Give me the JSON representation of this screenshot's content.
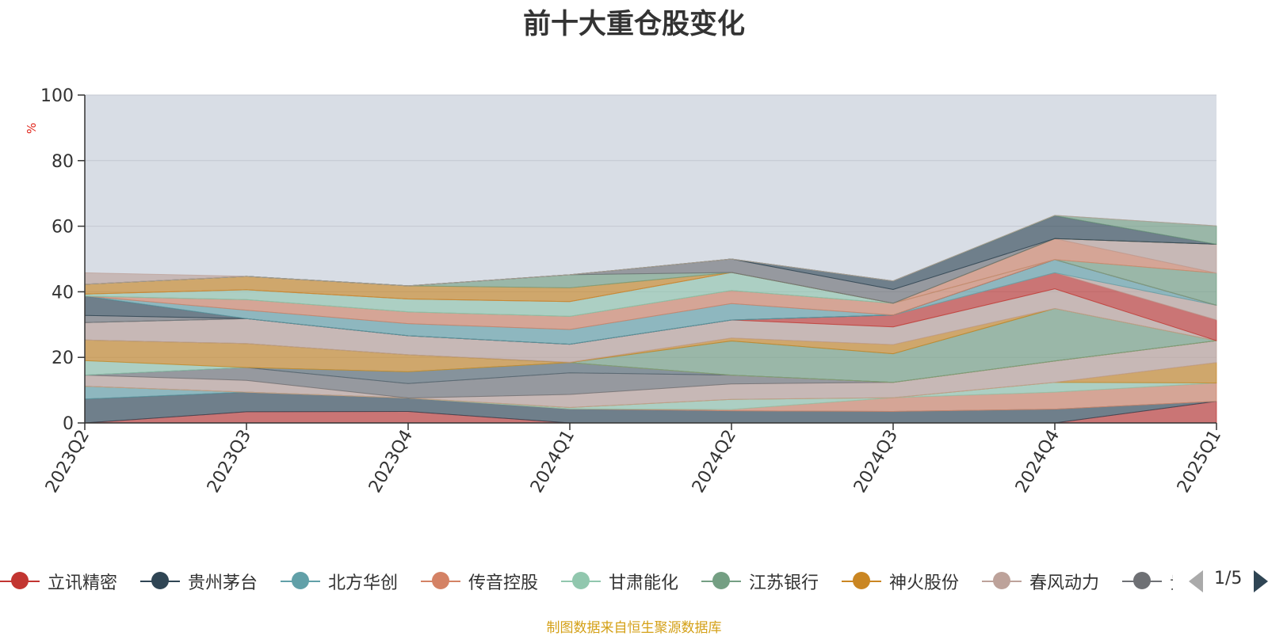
{
  "chart_data": {
    "type": "area",
    "title": "前十大重仓股变化",
    "ylabel": "%",
    "ylim": [
      0,
      100
    ],
    "yticks": [
      0,
      20,
      40,
      60,
      80,
      100
    ],
    "categories": [
      "2023Q2",
      "2023Q3",
      "2023Q4",
      "2024Q1",
      "2024Q2",
      "2024Q3",
      "2024Q4",
      "2025Q1"
    ],
    "stacked": true,
    "grid": true,
    "legend_position": "bottom",
    "series": [
      {
        "name": "立讯精密",
        "color": "#c23531",
        "values": [
          0,
          3.4,
          3.5,
          0,
          0,
          0,
          0,
          6.6
        ]
      },
      {
        "name": "贵州茅台",
        "color": "#2f4554",
        "values": [
          7.3,
          6.0,
          4.1,
          4.3,
          3.7,
          3.5,
          4.2,
          0
        ]
      },
      {
        "name": "北方华创",
        "color": "#61a0a8",
        "values": [
          3.9,
          0,
          0,
          0,
          0,
          0,
          0,
          0
        ]
      },
      {
        "name": "传音控股",
        "color": "#d48265",
        "values": [
          0,
          0,
          0,
          0,
          0.4,
          4.2,
          5.2,
          5.6
        ]
      },
      {
        "name": "甘肃能化",
        "color": "#91c7ae",
        "values": [
          0,
          0,
          0,
          0.4,
          3.1,
          0,
          3.0,
          0
        ]
      },
      {
        "name": "江苏银行",
        "color": "#749f83",
        "values": [
          0,
          0,
          0,
          0,
          0,
          0,
          0,
          0
        ]
      },
      {
        "name": "神火股份",
        "color": "#ca8622",
        "values": [
          0,
          0,
          0,
          0,
          0,
          0,
          0,
          6.2
        ]
      },
      {
        "name": "春风动力",
        "color": "#bda29a",
        "values": [
          3.4,
          3.6,
          0,
          4.0,
          4.7,
          4.7,
          6.5,
          6.7
        ]
      },
      {
        "name": "",
        "color": "#6e7074",
        "values": [
          0,
          3.9,
          4.4,
          6.6,
          2.7,
          0,
          0,
          0
        ]
      },
      {
        "name": "",
        "color": "#546570",
        "values": [
          0,
          0,
          3.6,
          3.1,
          0,
          0,
          0,
          0
        ]
      },
      {
        "name": "",
        "color": "#91c7ae",
        "values": [
          4.4,
          0,
          0,
          0,
          0,
          0,
          0,
          0
        ]
      },
      {
        "name": "",
        "color": "#ca8622",
        "values": [
          6.3,
          7.3,
          5.2,
          0,
          0,
          0,
          0,
          0
        ]
      },
      {
        "name": "",
        "color": "#749f83",
        "values": [
          0,
          0,
          0,
          0,
          10.4,
          8.7,
          16.0,
          0
        ]
      },
      {
        "name": "",
        "color": "#ca8622",
        "values": [
          0,
          0,
          0,
          0.1,
          0.9,
          2.8,
          0,
          0
        ]
      },
      {
        "name": "",
        "color": "#bda29a",
        "values": [
          5.3,
          7.6,
          5.8,
          5.5,
          5.5,
          5.4,
          6.0,
          0
        ]
      },
      {
        "name": "",
        "color": "#c23531",
        "values": [
          0,
          0,
          0,
          0,
          0,
          3.6,
          4.9,
          6.3
        ]
      },
      {
        "name": "",
        "color": "#bda29a",
        "values": [
          0,
          0,
          0,
          0,
          0,
          0,
          0,
          4.5
        ]
      },
      {
        "name": "",
        "color": "#61a0a8",
        "values": [
          0,
          0,
          0,
          0,
          0,
          0,
          4.0,
          0
        ]
      },
      {
        "name": "",
        "color": "#6e7074",
        "values": [
          2.2,
          0,
          0,
          0,
          0,
          0,
          0,
          0
        ]
      },
      {
        "name": "",
        "color": "#2f4554",
        "values": [
          5.9,
          0,
          0,
          0,
          0,
          0,
          0,
          0
        ]
      },
      {
        "name": "",
        "color": "#61a0a8",
        "values": [
          0,
          2.6,
          3.7,
          4.5,
          5.0,
          0,
          0,
          0
        ]
      },
      {
        "name": "",
        "color": "#d48265",
        "values": [
          0,
          3.2,
          3.6,
          4.0,
          4.0,
          3.6,
          0,
          0
        ]
      },
      {
        "name": "",
        "color": "#749f83",
        "values": [
          0,
          0,
          0,
          0,
          0,
          0,
          0,
          9.8
        ]
      },
      {
        "name": "",
        "color": "#91c7ae",
        "values": [
          0.6,
          3.0,
          3.9,
          4.5,
          5.5,
          0,
          0,
          0
        ]
      },
      {
        "name": "",
        "color": "#d48265",
        "values": [
          0,
          0,
          0,
          0,
          0,
          0,
          6.4,
          0
        ]
      },
      {
        "name": "",
        "color": "#bda29a",
        "values": [
          0,
          0,
          0,
          0,
          0,
          0,
          0,
          8.8
        ]
      },
      {
        "name": "",
        "color": "#ca8622",
        "values": [
          3.0,
          4.1,
          4.0,
          4.2,
          0,
          0,
          0,
          0
        ]
      },
      {
        "name": "",
        "color": "#749f83",
        "values": [
          0,
          0,
          0,
          4.0,
          0,
          0,
          0,
          0
        ]
      },
      {
        "name": "",
        "color": "#6e7074",
        "values": [
          0,
          0,
          0,
          0,
          4.1,
          4.2,
          0,
          0
        ]
      },
      {
        "name": "",
        "color": "#2f4554",
        "values": [
          0,
          0,
          0,
          0,
          0,
          2.6,
          7.0,
          0
        ]
      },
      {
        "name": "",
        "color": "#749f83",
        "values": [
          0,
          0,
          0,
          0,
          0,
          0,
          0.1,
          5.6
        ]
      },
      {
        "name": "",
        "color": "#bda29a",
        "values": [
          3.5,
          0,
          0,
          0,
          0,
          0,
          0,
          0
        ]
      }
    ]
  },
  "legend": {
    "visible_items": [
      "立讯精密",
      "贵州茅台",
      "北方华创",
      "传音控股",
      "甘肃能化",
      "江苏银行",
      "神火股份",
      "春风动力",
      "贵"
    ],
    "visible_colors": [
      "#c23531",
      "#2f4554",
      "#61a0a8",
      "#d48265",
      "#91c7ae",
      "#749f83",
      "#ca8622",
      "#bda29a",
      "#6e7074"
    ],
    "page_indicator": "1/5"
  },
  "plot_background": "#d8dde5",
  "source_note": "制图数据来自恒生聚源数据库"
}
